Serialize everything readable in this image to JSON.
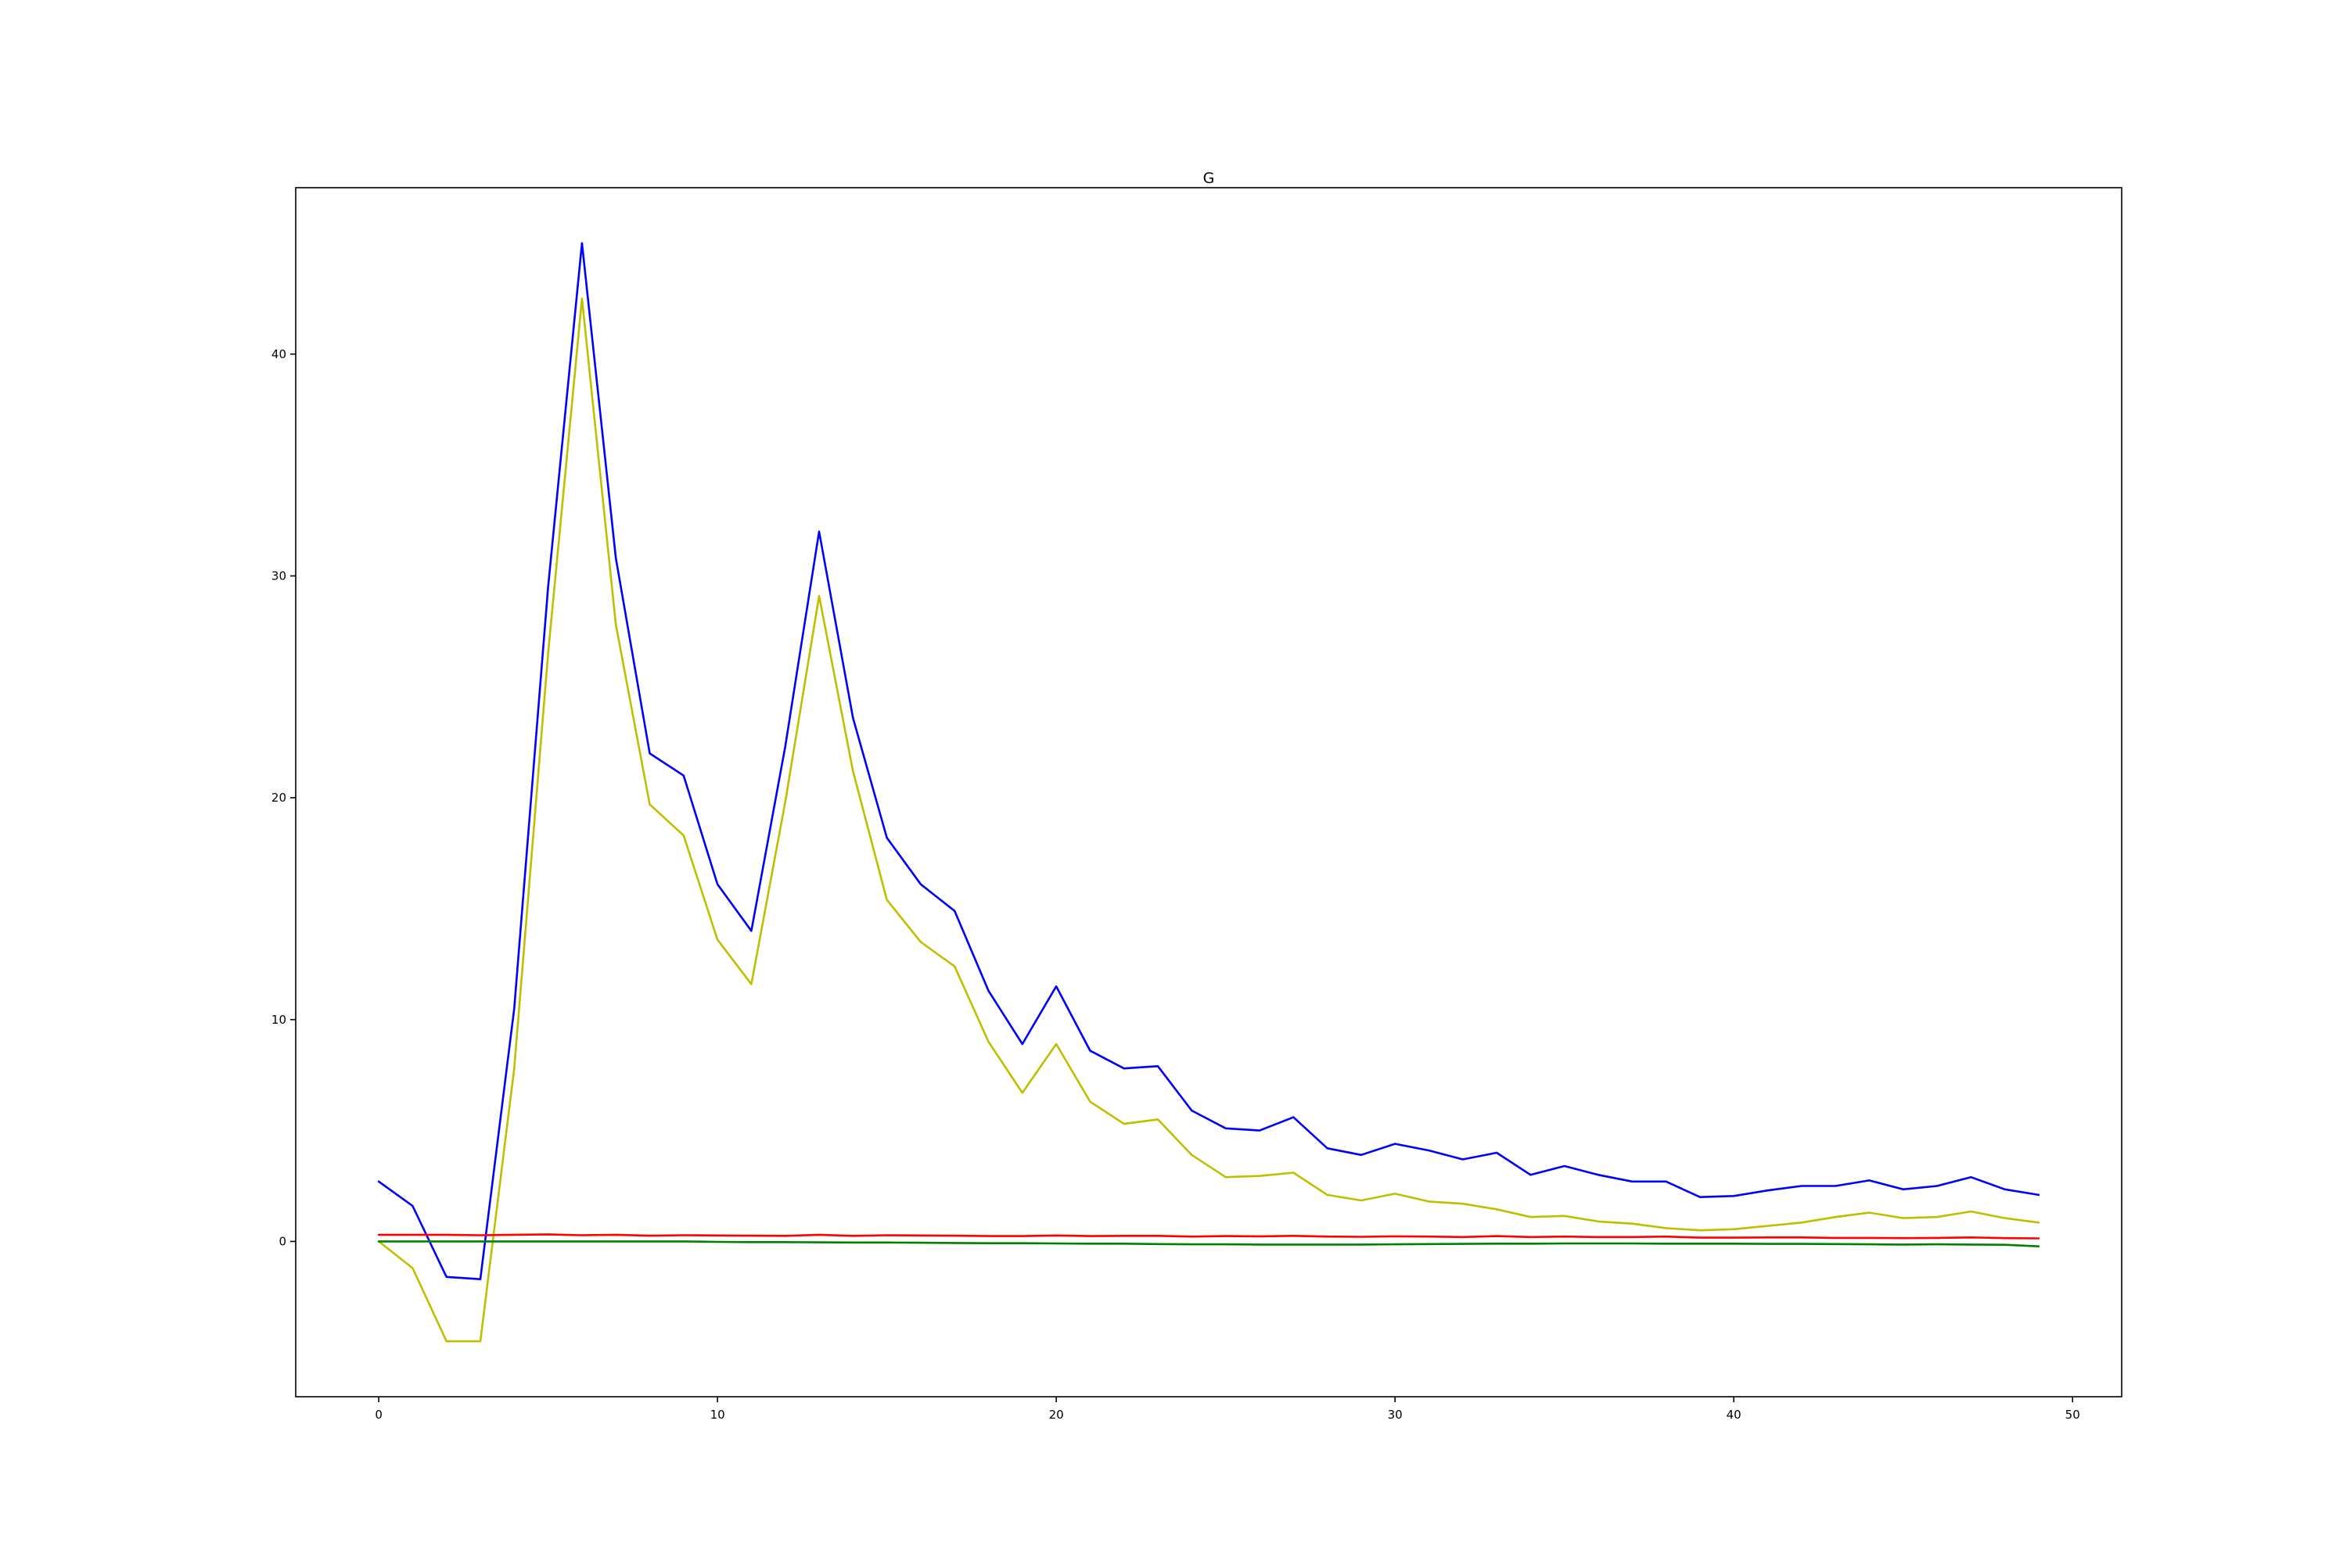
{
  "chart_data": {
    "type": "line",
    "title": "G",
    "xlabel": "",
    "ylabel": "",
    "xlim": [
      -2.45,
      51.45
    ],
    "ylim": [
      -7,
      47.5
    ],
    "xticks": [
      0,
      10,
      20,
      30,
      40,
      50
    ],
    "yticks": [
      0,
      10,
      20,
      30,
      40
    ],
    "grid": false,
    "legend": "none",
    "x": [
      0,
      1,
      2,
      3,
      4,
      5,
      6,
      7,
      8,
      9,
      10,
      11,
      12,
      13,
      14,
      15,
      16,
      17,
      18,
      19,
      20,
      21,
      22,
      23,
      24,
      25,
      26,
      27,
      28,
      29,
      30,
      31,
      32,
      33,
      34,
      35,
      36,
      37,
      38,
      39,
      40,
      41,
      42,
      43,
      44,
      45,
      46,
      47,
      48,
      49
    ],
    "series": [
      {
        "color": "#0000ff",
        "values": [
          2.7,
          1.6,
          -1.6,
          -1.7,
          10.5,
          29.5,
          45,
          30.8,
          22,
          21,
          16.1,
          14,
          22.3,
          32,
          23.6,
          18.2,
          16.1,
          14.9,
          11.3,
          8.9,
          11.5,
          8.6,
          7.8,
          7.9,
          5.9,
          5.1,
          5.0,
          5.6,
          4.2,
          3.9,
          4.4,
          4.1,
          3.7,
          4.0,
          3.0,
          3.4,
          3.0,
          2.7,
          2.7,
          2.0,
          2.05,
          2.3,
          2.5,
          2.5,
          2.75,
          2.35,
          2.5,
          2.9,
          2.35,
          2.1
        ]
      },
      {
        "color": "#bfbf00",
        "values": [
          0,
          -1.2,
          -4.5,
          -4.5,
          7.8,
          26.5,
          42.5,
          27.8,
          19.7,
          18.3,
          13.6,
          11.6,
          19.8,
          29.1,
          21.2,
          15.4,
          13.5,
          12.4,
          9.0,
          6.7,
          8.9,
          6.3,
          5.3,
          5.5,
          3.9,
          2.9,
          2.95,
          3.1,
          2.1,
          1.85,
          2.15,
          1.8,
          1.7,
          1.45,
          1.1,
          1.15,
          0.9,
          0.8,
          0.6,
          0.5,
          0.55,
          0.7,
          0.85,
          1.1,
          1.3,
          1.05,
          1.1,
          1.35,
          1.05,
          0.85
        ]
      },
      {
        "color": "#ff0000",
        "values": [
          0.3,
          0.3,
          0.3,
          0.28,
          0.3,
          0.32,
          0.28,
          0.3,
          0.26,
          0.28,
          0.27,
          0.26,
          0.25,
          0.3,
          0.25,
          0.28,
          0.27,
          0.26,
          0.24,
          0.24,
          0.27,
          0.24,
          0.25,
          0.25,
          0.22,
          0.24,
          0.23,
          0.25,
          0.22,
          0.21,
          0.23,
          0.22,
          0.2,
          0.24,
          0.2,
          0.22,
          0.2,
          0.2,
          0.22,
          0.17,
          0.17,
          0.18,
          0.18,
          0.16,
          0.16,
          0.15,
          0.16,
          0.18,
          0.15,
          0.14
        ]
      },
      {
        "color": "#008000",
        "values": [
          0,
          0,
          0,
          0,
          0,
          0,
          0,
          0,
          0,
          0,
          -0.02,
          -0.03,
          -0.03,
          -0.04,
          -0.05,
          -0.05,
          -0.06,
          -0.07,
          -0.08,
          -0.08,
          -0.09,
          -0.1,
          -0.1,
          -0.12,
          -0.13,
          -0.13,
          -0.14,
          -0.14,
          -0.14,
          -0.14,
          -0.13,
          -0.12,
          -0.11,
          -0.1,
          -0.1,
          -0.09,
          -0.09,
          -0.09,
          -0.1,
          -0.1,
          -0.1,
          -0.11,
          -0.11,
          -0.12,
          -0.13,
          -0.14,
          -0.13,
          -0.14,
          -0.15,
          -0.22
        ]
      }
    ]
  }
}
